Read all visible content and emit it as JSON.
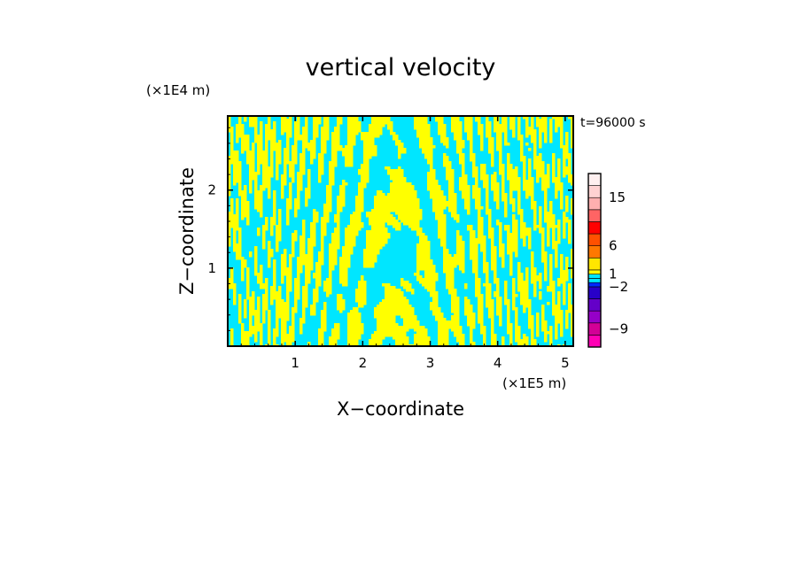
{
  "chart_data": {
    "type": "heatmap",
    "title": "vertical velocity",
    "xlabel": "X−coordinate",
    "ylabel": "Z−coordinate",
    "x_scale_label": "(×1E5 m)",
    "y_scale_label": "(×1E4 m)",
    "time_label": "t=96000 s",
    "xlim": [
      0,
      5.12
    ],
    "ylim": [
      0,
      2.95
    ],
    "x_ticks": [
      1,
      2,
      3,
      4,
      5
    ],
    "y_ticks": [
      1,
      2
    ],
    "x_tick_labels": [
      "1",
      "2",
      "3",
      "4",
      "5"
    ],
    "y_tick_labels": [
      "1",
      "2"
    ],
    "colorbar": {
      "levels": [
        -12,
        -10,
        -8,
        -6,
        -4,
        -2,
        -1,
        0,
        1,
        2,
        4,
        6,
        8,
        10,
        12,
        15,
        20,
        25
      ],
      "colors": [
        "#ff00b4",
        "#d20096",
        "#9600c8",
        "#6400c8",
        "#2800c8",
        "#0028ff",
        "#00e6ff",
        "#00e6ff",
        "#ffff00",
        "#ffe600",
        "#ff7800",
        "#ff5000",
        "#ff0000",
        "#ff6464",
        "#ffafaf",
        "#ffd2d2",
        "#fff0f0"
      ],
      "tick_values": [
        15,
        6,
        1,
        -2,
        -9
      ],
      "tick_labels": [
        "15",
        "6",
        "1",
        "−2",
        "−9"
      ]
    },
    "field_colors": {
      "negative": "#00e6ff",
      "positive": "#ffff00"
    }
  }
}
